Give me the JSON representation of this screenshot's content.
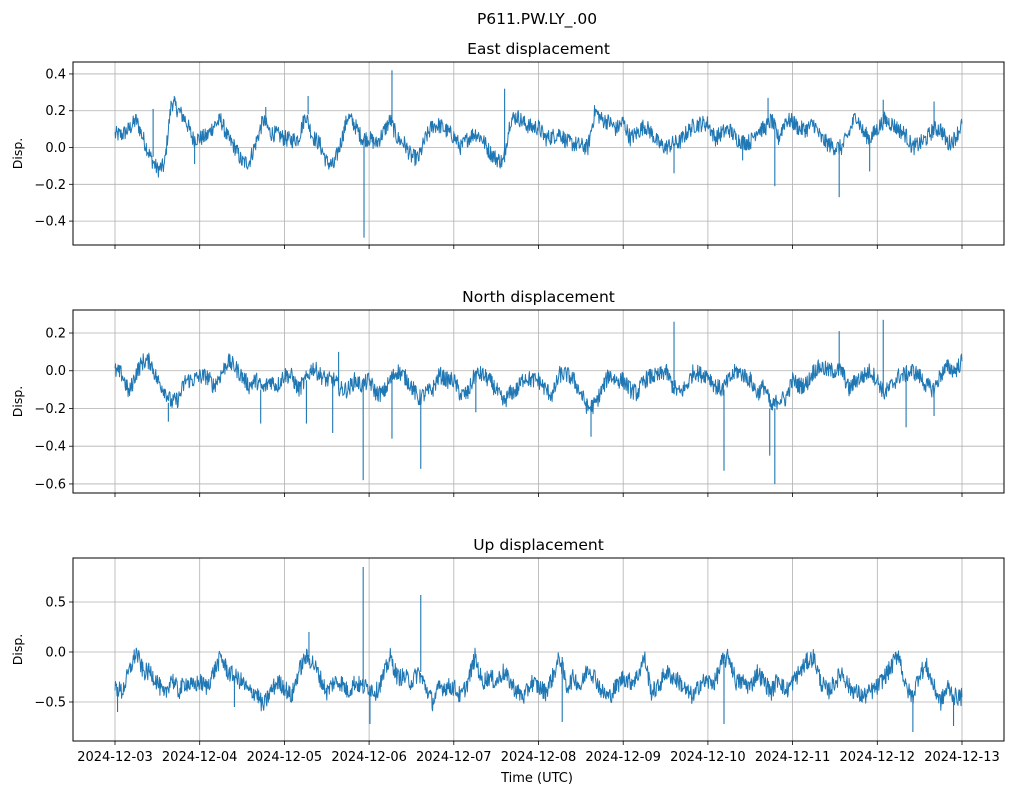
{
  "chart_data": {
    "type": "line",
    "title": "P611.PW.LY_.00",
    "xlabel": "Time (UTC)",
    "x_start": "2024-12-03",
    "x_step_hours": 2,
    "xticks": [
      "2024-12-03",
      "2024-12-04",
      "2024-12-05",
      "2024-12-06",
      "2024-12-07",
      "2024-12-08",
      "2024-12-09",
      "2024-12-10",
      "2024-12-11",
      "2024-12-12",
      "2024-12-13"
    ],
    "xlim_days": [
      -0.5,
      10.5
    ],
    "grid": true,
    "line_color": "#1f77b4",
    "panels": [
      {
        "title": "East displacement",
        "ylabel": "Disp.",
        "ylim": [
          -0.53,
          0.465
        ],
        "yticks": [
          "0.4",
          "0.2",
          "0.0",
          "−0.2",
          "−0.4"
        ],
        "ytick_values": [
          0.4,
          0.2,
          0.0,
          -0.2,
          -0.4
        ],
        "values": [
          0.07,
          0.07,
          0.1,
          0.15,
          0.05,
          -0.05,
          -0.12,
          -0.1,
          0.25,
          0.2,
          0.15,
          0.05,
          0.05,
          0.06,
          0.12,
          0.15,
          0.05,
          0.0,
          -0.08,
          -0.08,
          0.03,
          0.15,
          0.08,
          0.07,
          0.05,
          0.04,
          0.05,
          0.18,
          0.06,
          0.02,
          -0.08,
          -0.1,
          0.03,
          0.17,
          0.12,
          0.05,
          0.05,
          0.02,
          0.08,
          0.15,
          0.05,
          0.02,
          -0.05,
          -0.06,
          0.05,
          0.12,
          0.12,
          0.09,
          0.06,
          0.0,
          0.05,
          0.08,
          0.05,
          -0.02,
          -0.06,
          -0.08,
          0.15,
          0.17,
          0.13,
          0.11,
          0.11,
          0.05,
          0.06,
          0.08,
          0.03,
          0.02,
          0.01,
          0.0,
          0.2,
          0.15,
          0.14,
          0.1,
          0.14,
          0.05,
          0.08,
          0.12,
          0.08,
          0.02,
          0.0,
          0.02,
          0.03,
          0.08,
          0.12,
          0.13,
          0.13,
          0.05,
          0.08,
          0.1,
          0.05,
          0.03,
          0.03,
          0.1,
          0.1,
          0.15,
          0.05,
          0.15,
          0.14,
          0.1,
          0.1,
          0.13,
          0.05,
          0.02,
          0.0,
          0.0,
          0.08,
          0.18,
          0.08,
          0.05,
          0.1,
          0.15,
          0.13,
          0.1,
          0.07,
          0.0,
          0.02,
          0.05,
          0.1,
          0.1,
          0.02,
          0.05,
          0.13
        ],
        "spikes": [
          [
            0.94,
            -0.09
          ],
          [
            0.45,
            0.21
          ],
          [
            0.7,
            0.28
          ],
          [
            1.78,
            0.22
          ],
          [
            2.28,
            0.28
          ],
          [
            2.94,
            -0.49
          ],
          [
            3.27,
            0.42
          ],
          [
            4.6,
            0.32
          ],
          [
            6.6,
            -0.14
          ],
          [
            7.41,
            -0.07
          ],
          [
            7.79,
            -0.21
          ],
          [
            7.71,
            0.27
          ],
          [
            8.55,
            -0.27
          ],
          [
            8.91,
            -0.13
          ],
          [
            9.07,
            0.26
          ],
          [
            9.67,
            0.25
          ]
        ]
      },
      {
        "title": "North displacement",
        "ylabel": "Disp.",
        "ylim": [
          -0.648,
          0.322
        ],
        "yticks": [
          "0.2",
          "0.0",
          "−0.2",
          "−0.4",
          "−0.6"
        ],
        "ytick_values": [
          0.2,
          0.0,
          -0.2,
          -0.4,
          -0.6
        ],
        "values": [
          0.0,
          -0.02,
          -0.12,
          -0.01,
          0.05,
          0.05,
          -0.05,
          -0.1,
          -0.17,
          -0.15,
          -0.05,
          -0.05,
          -0.03,
          -0.03,
          -0.08,
          -0.02,
          0.05,
          0.02,
          -0.03,
          -0.08,
          -0.05,
          -0.1,
          -0.05,
          -0.08,
          -0.02,
          -0.03,
          -0.1,
          -0.05,
          0.02,
          -0.02,
          -0.05,
          -0.05,
          -0.1,
          -0.1,
          -0.05,
          -0.08,
          -0.05,
          -0.12,
          -0.12,
          -0.05,
          0.0,
          -0.03,
          -0.08,
          -0.15,
          -0.12,
          -0.1,
          -0.02,
          -0.05,
          -0.05,
          -0.13,
          -0.12,
          -0.02,
          -0.02,
          -0.05,
          -0.1,
          -0.17,
          -0.12,
          -0.1,
          -0.03,
          -0.05,
          -0.05,
          -0.1,
          -0.13,
          -0.02,
          -0.02,
          -0.05,
          -0.12,
          -0.2,
          -0.18,
          -0.1,
          -0.02,
          -0.05,
          -0.05,
          -0.1,
          -0.12,
          -0.05,
          -0.03,
          -0.03,
          0.0,
          -0.08,
          -0.12,
          -0.08,
          0.0,
          -0.02,
          -0.02,
          -0.08,
          -0.1,
          -0.05,
          0.0,
          -0.02,
          -0.05,
          -0.12,
          -0.08,
          -0.2,
          -0.15,
          -0.15,
          -0.05,
          -0.08,
          -0.07,
          0.0,
          0.02,
          0.0,
          0.0,
          0.0,
          -0.1,
          -0.05,
          -0.03,
          0.0,
          -0.05,
          -0.12,
          -0.08,
          -0.03,
          -0.02,
          0.0,
          -0.03,
          -0.08,
          -0.1,
          -0.02,
          0.02,
          0.0,
          0.05
        ],
        "spikes": [
          [
            0.63,
            -0.27
          ],
          [
            1.72,
            -0.28
          ],
          [
            2.26,
            -0.28
          ],
          [
            2.57,
            -0.33
          ],
          [
            2.64,
            0.1
          ],
          [
            2.93,
            -0.58
          ],
          [
            3.27,
            -0.36
          ],
          [
            3.61,
            -0.52
          ],
          [
            4.26,
            -0.22
          ],
          [
            5.62,
            -0.35
          ],
          [
            6.6,
            0.26
          ],
          [
            7.19,
            -0.53
          ],
          [
            7.73,
            -0.45
          ],
          [
            7.79,
            -0.6
          ],
          [
            8.55,
            0.21
          ],
          [
            9.07,
            0.27
          ],
          [
            9.34,
            -0.3
          ],
          [
            9.67,
            -0.24
          ]
        ]
      },
      {
        "title": "Up displacement",
        "ylabel": "Disp.",
        "ylim": [
          -0.89,
          0.94
        ],
        "yticks": [
          "0.5",
          "0.0",
          "−0.5"
        ],
        "ytick_values": [
          0.5,
          0.0,
          -0.5
        ],
        "values": [
          -0.35,
          -0.4,
          -0.2,
          0.0,
          -0.2,
          -0.2,
          -0.3,
          -0.45,
          -0.25,
          -0.4,
          -0.3,
          -0.35,
          -0.3,
          -0.35,
          -0.2,
          -0.05,
          -0.2,
          -0.25,
          -0.3,
          -0.4,
          -0.4,
          -0.55,
          -0.4,
          -0.3,
          -0.35,
          -0.45,
          -0.2,
          -0.05,
          -0.1,
          -0.25,
          -0.4,
          -0.3,
          -0.3,
          -0.4,
          -0.3,
          -0.35,
          -0.35,
          -0.4,
          -0.25,
          -0.05,
          -0.25,
          -0.25,
          -0.3,
          -0.2,
          -0.35,
          -0.5,
          -0.35,
          -0.35,
          -0.35,
          -0.45,
          -0.3,
          -0.05,
          -0.3,
          -0.25,
          -0.3,
          -0.2,
          -0.3,
          -0.4,
          -0.45,
          -0.3,
          -0.35,
          -0.4,
          -0.25,
          -0.05,
          -0.35,
          -0.25,
          -0.35,
          -0.15,
          -0.25,
          -0.4,
          -0.45,
          -0.35,
          -0.25,
          -0.3,
          -0.25,
          -0.05,
          -0.4,
          -0.35,
          -0.2,
          -0.25,
          -0.3,
          -0.4,
          -0.45,
          -0.3,
          -0.3,
          -0.3,
          -0.1,
          -0.05,
          -0.3,
          -0.3,
          -0.35,
          -0.2,
          -0.3,
          -0.4,
          -0.25,
          -0.4,
          -0.3,
          -0.2,
          -0.1,
          -0.05,
          -0.3,
          -0.4,
          -0.3,
          -0.2,
          -0.35,
          -0.4,
          -0.45,
          -0.4,
          -0.35,
          -0.25,
          -0.15,
          0.0,
          -0.35,
          -0.45,
          -0.2,
          -0.15,
          -0.35,
          -0.5,
          -0.35,
          -0.45,
          -0.45
        ],
        "spikes": [
          [
            0.03,
            -0.6
          ],
          [
            1.41,
            -0.55
          ],
          [
            2.29,
            0.2
          ],
          [
            2.93,
            0.85
          ],
          [
            3.01,
            -0.72
          ],
          [
            3.61,
            0.57
          ],
          [
            5.28,
            -0.7
          ],
          [
            7.19,
            -0.72
          ],
          [
            9.42,
            -0.8
          ],
          [
            9.9,
            -0.74
          ]
        ]
      }
    ]
  }
}
